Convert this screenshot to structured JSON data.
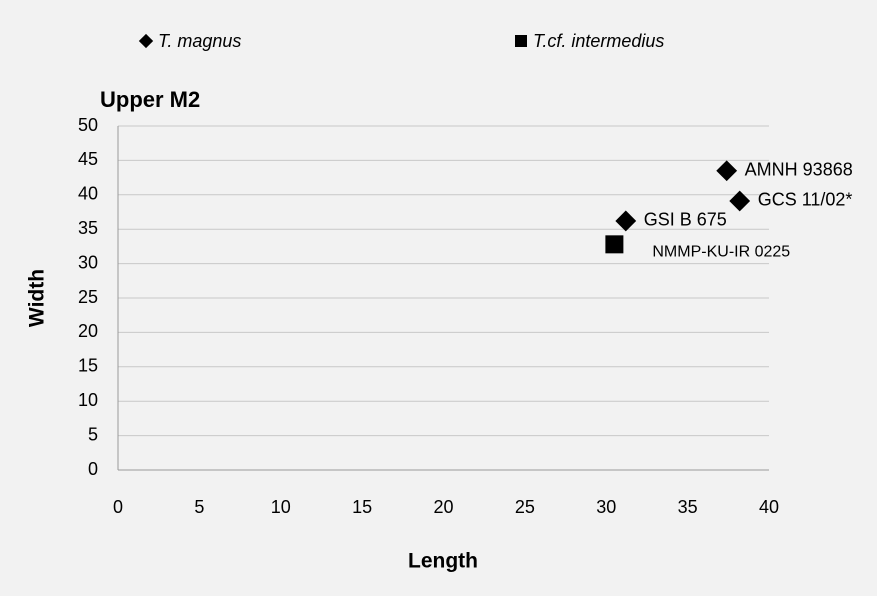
{
  "chart_data": {
    "type": "scatter",
    "title": "Upper M2",
    "xlabel": "Length",
    "ylabel": "Width",
    "xlim": [
      0,
      40
    ],
    "xticks": [
      0,
      5,
      10,
      15,
      20,
      25,
      30,
      35,
      40
    ],
    "ylim": [
      0,
      50
    ],
    "yticks": [
      0,
      5,
      10,
      15,
      20,
      25,
      30,
      35,
      40,
      45,
      50
    ],
    "grid": true,
    "legend": "top",
    "series": [
      {
        "name": "T. magnus",
        "color": "#000000",
        "marker": "diamond",
        "x": [
          37.4,
          38.2,
          31.2
        ],
        "values": [
          43.5,
          39.1,
          36.2
        ],
        "labels": [
          "AMNH 93868",
          "GCS 11/02*",
          "GSI B 675"
        ]
      },
      {
        "name": "T.cf. intermedius",
        "color": "#000000",
        "marker": "square",
        "x": [
          30.5
        ],
        "values": [
          32.8
        ],
        "labels": [
          "NMMP-KU-IR 0225"
        ]
      }
    ]
  }
}
